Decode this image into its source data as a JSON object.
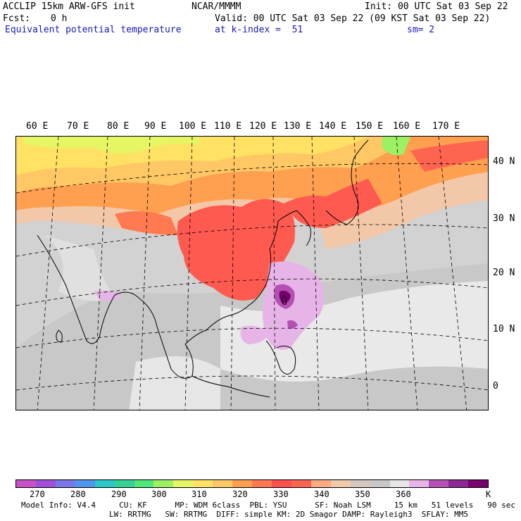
{
  "header": {
    "model": "ACCLIP 15km ARW-GFS init",
    "center": "NCAR/MMMM",
    "init": "Init: 00 UTC Sat 03 Sep 22",
    "fcst_label": "Fcst:",
    "fcst_value": "0 h",
    "valid": "Valid: 00 UTC Sat 03 Sep 22 (09 KST Sat 03 Sep 22)",
    "field": "Equivalent potential temperature",
    "level": "at k-index =  51",
    "smooth": "sm= 2"
  },
  "map": {
    "lon_labels": [
      "60 E",
      "70 E",
      "80 E",
      "90 E",
      "100 E",
      "110 E",
      "120 E",
      "130 E",
      "140 E",
      "150 E",
      "160 E",
      "170 E"
    ],
    "lat_labels": [
      "40 N",
      "30 N",
      "20 N",
      "10 N",
      "0"
    ]
  },
  "colorbar": {
    "colors": [
      "#c850c8",
      "#a050d8",
      "#7878e6",
      "#5096f0",
      "#28c8c8",
      "#32d296",
      "#50e678",
      "#9bf064",
      "#e6f564",
      "#ffe164",
      "#ffc864",
      "#ffa050",
      "#ff7850",
      "#ff5050",
      "#fa6450",
      "#ffaa82",
      "#f0c8aa",
      "#d2c8be",
      "#c8c8c8",
      "#e6e6e6",
      "#e6b4e6",
      "#b450b4",
      "#8c2896",
      "#78006e"
    ],
    "ticks": [
      "270",
      "280",
      "290",
      "300",
      "310",
      "320",
      "330",
      "340",
      "350",
      "360"
    ],
    "unit": "K"
  },
  "footer": {
    "line1": "Model Info: V4.4     CU: KF      MP: WDM 6class  PBL: YSU      SF: Noah LSM     15 km   51 levels   90 sec",
    "line2": "LW: RRTMG   SW: RRTMG  DIFF: simple KM: 2D Smagor DAMP: Rayleigh3  SFLAY: MM5"
  }
}
